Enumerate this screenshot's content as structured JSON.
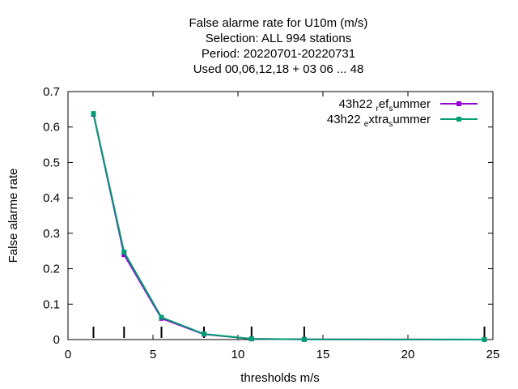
{
  "chart_data": {
    "type": "line",
    "title_lines": [
      "False alarme rate  for U10m (m/s)",
      "Selection: ALL    994 stations",
      "Period: 20220701-20220731",
      "Used  00,06,12,18  + 03 06 ... 48"
    ],
    "xlabel": "thresholds m/s",
    "ylabel": "False alarme rate",
    "xlim": [
      0,
      25
    ],
    "ylim": [
      0,
      0.7
    ],
    "x_ticks": [
      "0",
      "5",
      "10",
      "15",
      "20",
      "25"
    ],
    "y_ticks": [
      "0",
      "0.1",
      "0.2",
      "0.3",
      "0.4",
      "0.5",
      "0.6",
      "0.7"
    ],
    "threshold_marks": [
      1.5,
      3.3,
      5.5,
      8.0,
      10.8,
      13.9,
      24.5
    ],
    "legend_position": "top-right",
    "series": [
      {
        "name": "43h22 ref summer",
        "legend_main1": "43h22 ",
        "legend_sub1": "r",
        "legend_main2": "ef",
        "legend_sub2": "s",
        "legend_main3": "ummer",
        "color": "#9400d3",
        "x": [
          1.5,
          3.3,
          5.5,
          8.0,
          10.8,
          13.9,
          24.5
        ],
        "y": [
          0.636,
          0.24,
          0.06,
          0.015,
          0.002,
          0.0005,
          0.0
        ]
      },
      {
        "name": "43h22 extra summer",
        "legend_main1": "43h22 ",
        "legend_sub1": "e",
        "legend_main2": "xtra",
        "legend_sub2": "s",
        "legend_main3": "ummer",
        "color": "#009e73",
        "x": [
          1.5,
          3.3,
          5.5,
          8.0,
          10.8,
          13.9,
          24.5
        ],
        "y": [
          0.638,
          0.247,
          0.063,
          0.016,
          0.002,
          0.0005,
          0.0
        ]
      }
    ]
  }
}
